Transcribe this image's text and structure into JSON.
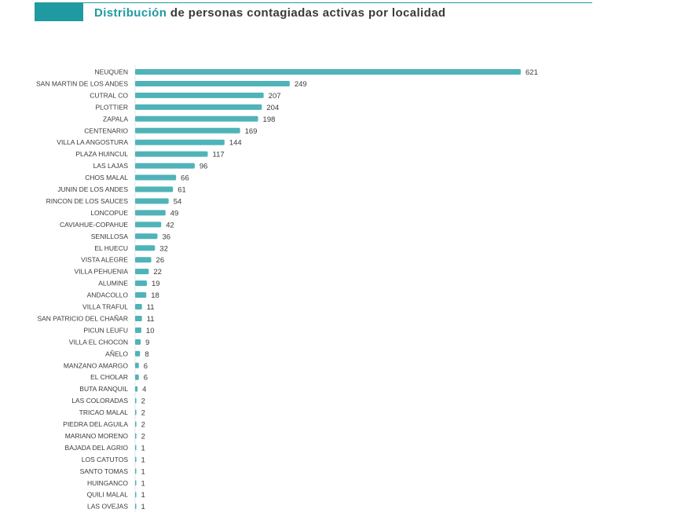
{
  "header": {
    "title_accent": "Distribución",
    "title_rest": " de personas contagiadas activas por localidad"
  },
  "colors": {
    "accent": "#1f9aa1",
    "bar": "#4fb3b8",
    "text": "#3a3a3a"
  },
  "chart_data": {
    "type": "bar",
    "orientation": "horizontal",
    "title": "Distribución de personas contagiadas activas por localidad",
    "xlabel": "",
    "ylabel": "",
    "grid": false,
    "legend": "none",
    "xlim": [
      0,
      621
    ],
    "categories": [
      "NEUQUEN",
      "SAN MARTIN DE LOS ANDES",
      "CUTRAL CO",
      "PLOTTIER",
      "ZAPALA",
      "CENTENARIO",
      "VILLA LA ANGOSTURA",
      "PLAZA HUINCUL",
      "LAS LAJAS",
      "CHOS MALAL",
      "JUNIN DE LOS ANDES",
      "RINCON DE LOS SAUCES",
      "LONCOPUE",
      "CAVIAHUE-COPAHUE",
      "SENILLOSA",
      "EL HUECU",
      "VISTA ALEGRE",
      "VILLA PEHUENIA",
      "ALUMINE",
      "ANDACOLLO",
      "VILLA TRAFUL",
      "SAN PATRICIO DEL CHAÑAR",
      "PICUN LEUFU",
      "VILLA EL CHOCON",
      "AÑELO",
      "MANZANO AMARGO",
      "EL CHOLAR",
      "BUTA RANQUIL",
      "LAS COLORADAS",
      "TRICAO MALAL",
      "PIEDRA DEL AGUILA",
      "MARIANO MORENO",
      "BAJADA DEL AGRIO",
      "LOS CATUTOS",
      "SANTO TOMAS",
      "HUINGANCO",
      "QUILI MALAL",
      "LAS OVEJAS"
    ],
    "values": [
      621,
      249,
      207,
      204,
      198,
      169,
      144,
      117,
      96,
      66,
      61,
      54,
      49,
      42,
      36,
      32,
      26,
      22,
      19,
      18,
      11,
      11,
      10,
      9,
      8,
      6,
      6,
      4,
      2,
      2,
      2,
      2,
      1,
      1,
      1,
      1,
      1,
      1
    ]
  }
}
